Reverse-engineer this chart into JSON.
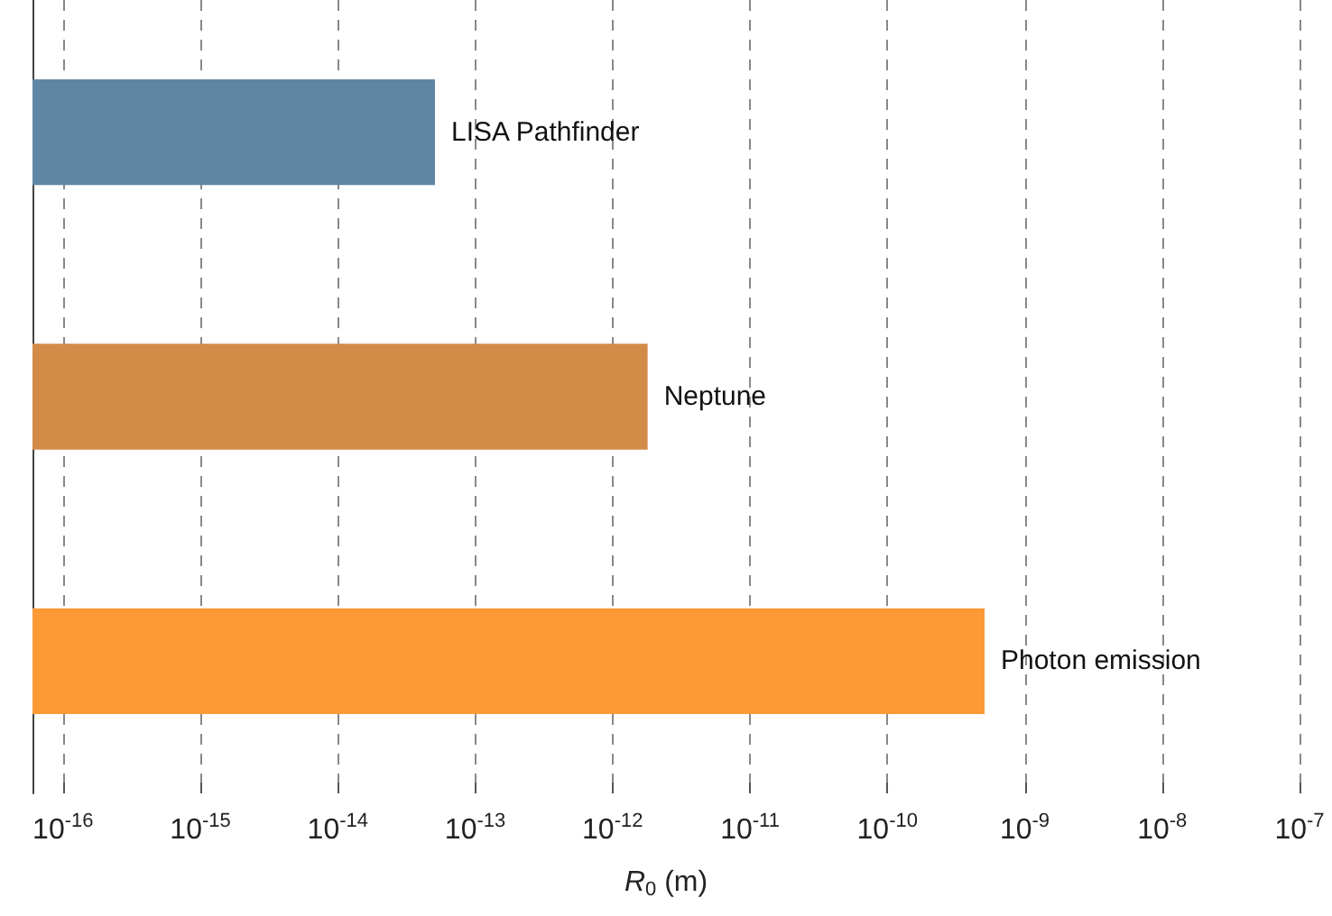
{
  "chart_data": {
    "type": "bar",
    "orientation": "horizontal",
    "log": "x",
    "xlabel": "R$_{0}$ (m)",
    "categories": [
      "LISA Pathfinder",
      "Neptune",
      "Photon emission"
    ],
    "values": [
      5.1e-14,
      1.8e-12,
      5.1e-10
    ],
    "colors": [
      "#5f87a3",
      "#d38b47",
      "#fd9a35"
    ],
    "xlim": [
      6e-17,
      1e-07
    ],
    "xticks": [
      {
        "value": 1e-16,
        "label": "10$^{-16}$"
      },
      {
        "value": 1e-15,
        "label": "10$^{-15}$"
      },
      {
        "value": 1e-14,
        "label": "10$^{-14}$"
      },
      {
        "value": 1e-13,
        "label": "10$^{-13}$"
      },
      {
        "value": 1e-12,
        "label": "10$^{-12}$"
      },
      {
        "value": 1e-11,
        "label": "10$^{-11}$"
      },
      {
        "value": 1e-10,
        "label": "10$^{-10}$"
      },
      {
        "value": 1e-09,
        "label": "10$^{-9}$"
      },
      {
        "value": 1e-08,
        "label": "10$^{-8}$"
      },
      {
        "value": 1e-07,
        "label": "10$^{-7}$"
      }
    ],
    "grid": "x",
    "tick_labels": "x"
  }
}
